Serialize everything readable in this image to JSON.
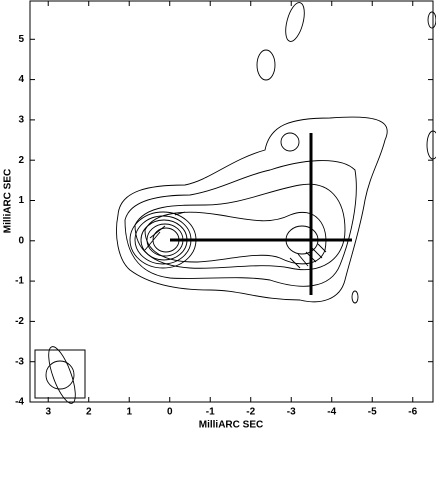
{
  "chart_data": {
    "type": "contour",
    "xlabel": "MilliARC SEC",
    "ylabel": "MilliARC SEC",
    "xlim": [
      3.45,
      -6.5
    ],
    "xticks": [
      3,
      2,
      1,
      0,
      -1,
      -2,
      -3,
      -4,
      -5,
      -6
    ],
    "ylim": [
      -4.0,
      5.95
    ],
    "yticks": [
      -4,
      -3,
      -2,
      -1,
      0,
      1,
      2,
      3,
      4,
      5
    ],
    "color": "#000000"
  }
}
